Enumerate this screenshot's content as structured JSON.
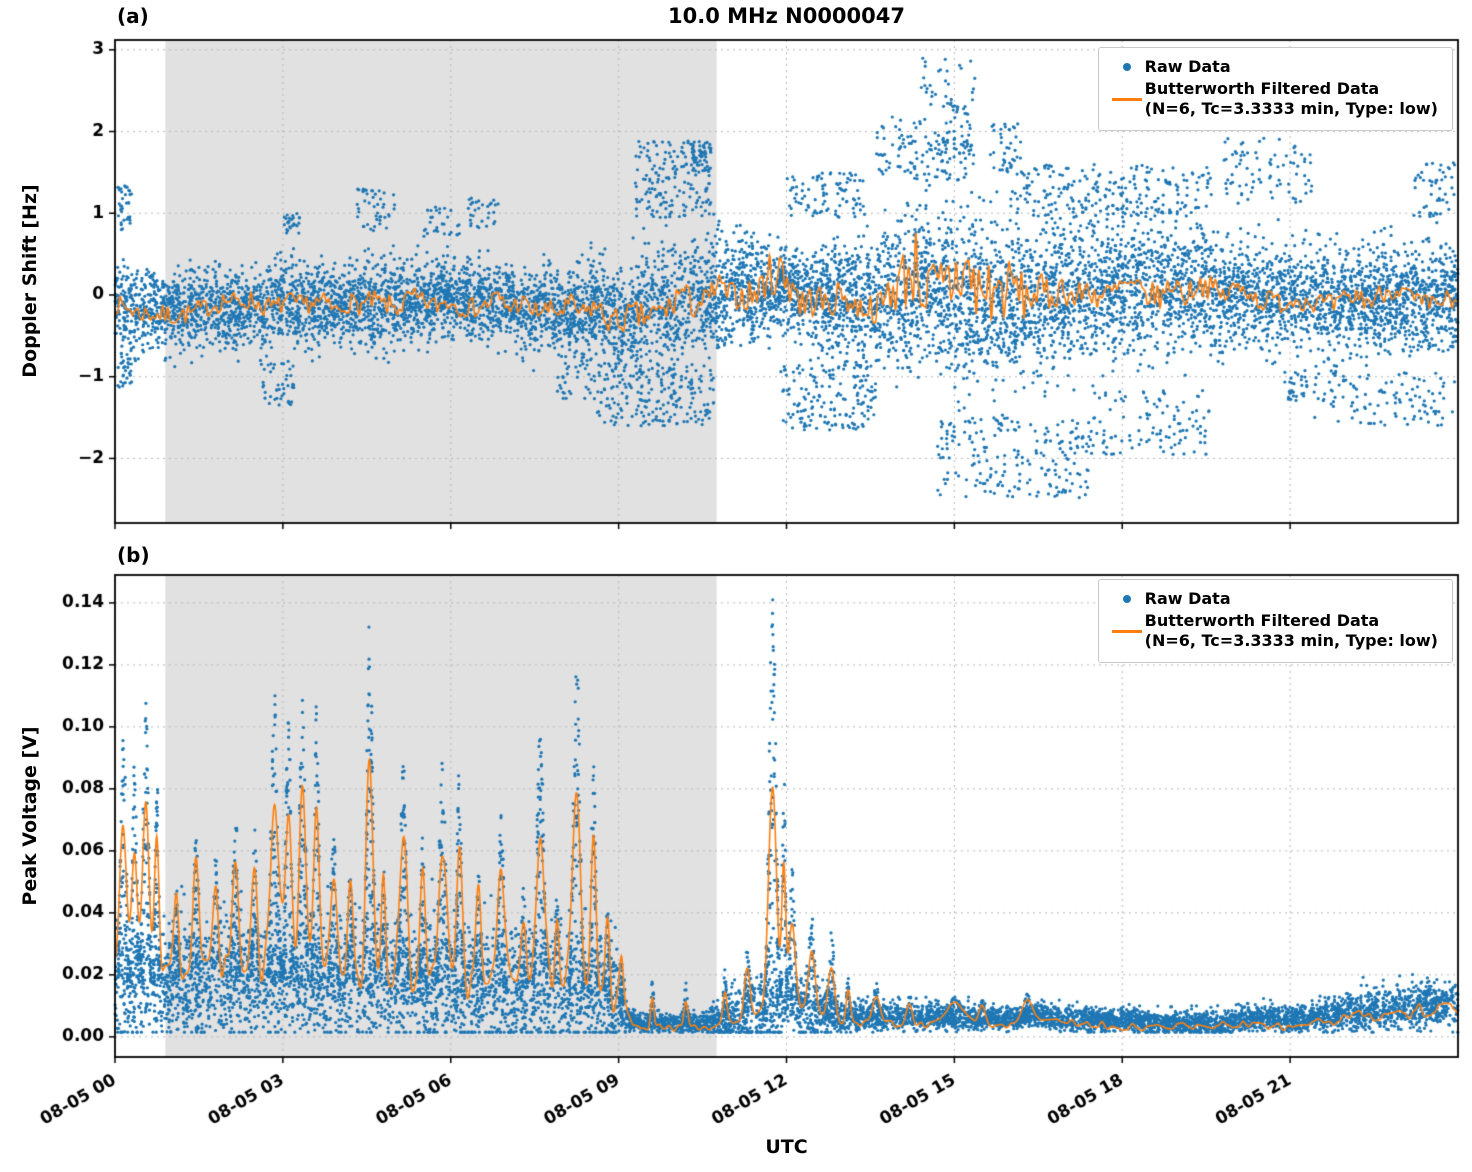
{
  "figure": {
    "title": "10.0 MHz N0000047",
    "xlabel": "UTC",
    "panel_a": "(a)",
    "panel_b": "(b)"
  },
  "legend": {
    "raw": "Raw Data",
    "filtered": "Butterworth Filtered Data",
    "filtered_params": "(N=6, Tc=3.3333 min, Type: low)"
  },
  "colors": {
    "raw_points": "#1f77b4",
    "filtered_line": "#ff7f0e",
    "shaded_region": "#e1e1e1",
    "grid": "#b8b8b8",
    "axis": "#000000",
    "background": "#ffffff"
  },
  "chart_data": [
    {
      "panel": "a",
      "type": "scatter",
      "title": "10.0 MHz N0000047",
      "ylabel": "Doppler Shift [Hz]",
      "xlabel": "UTC",
      "ylim": [
        -2.79,
        3.12
      ],
      "yticks": [
        {
          "v": 3,
          "label": "3"
        },
        {
          "v": 2,
          "label": "2"
        },
        {
          "v": 1,
          "label": "1"
        },
        {
          "v": 0,
          "label": "0"
        },
        {
          "v": -1,
          "label": "−1"
        },
        {
          "v": -2,
          "label": "−2"
        }
      ],
      "x_hours_range": [
        0,
        24
      ],
      "xticks_hours": [
        0,
        3,
        6,
        9,
        12,
        15,
        18,
        21
      ],
      "xtick_labels": [
        "08-05 00",
        "08-05 03",
        "08-05 06",
        "08-05 09",
        "08-05 12",
        "08-05 15",
        "08-05 18",
        "08-05 21"
      ],
      "shaded_hours": [
        0.9,
        10.75
      ],
      "raw_representation": "dense scatter synthesized from band statistics below",
      "raw_band": {
        "hours": [
          0,
          1,
          2,
          3,
          4,
          5,
          6,
          7,
          8,
          8.5,
          9,
          9.5,
          10,
          10.5,
          11,
          11.5,
          12,
          12.5,
          13,
          13.5,
          14,
          14.5,
          15,
          15.5,
          16,
          16.5,
          17,
          17.5,
          18,
          19,
          20,
          21,
          22,
          23,
          24
        ],
        "center": [
          -0.15,
          -0.2,
          -0.15,
          -0.1,
          -0.15,
          -0.1,
          -0.05,
          -0.15,
          -0.2,
          -0.15,
          -0.3,
          -0.2,
          -0.1,
          0.0,
          0.1,
          0.1,
          0.05,
          0.0,
          -0.05,
          -0.1,
          0.0,
          0.1,
          0.0,
          -0.1,
          -0.1,
          -0.05,
          0.0,
          0.05,
          0.1,
          0.1,
          0.0,
          -0.05,
          -0.1,
          0.0,
          -0.1
        ],
        "spread": [
          0.42,
          0.38,
          0.4,
          0.42,
          0.4,
          0.45,
          0.4,
          0.38,
          0.42,
          0.5,
          0.55,
          0.62,
          0.65,
          0.6,
          0.55,
          0.5,
          0.45,
          0.5,
          0.55,
          0.65,
          0.75,
          0.8,
          0.85,
          0.8,
          0.75,
          0.8,
          0.75,
          0.7,
          0.65,
          0.6,
          0.55,
          0.5,
          0.55,
          0.5,
          0.55
        ]
      },
      "outlier_clusters": [
        [
          0.05,
          0.3,
          0.8,
          1.35,
          35
        ],
        [
          0.05,
          0.3,
          -1.15,
          -0.7,
          30
        ],
        [
          2.55,
          3.2,
          -1.35,
          -0.8,
          45
        ],
        [
          3.0,
          3.3,
          0.7,
          1.0,
          25
        ],
        [
          4.3,
          5.05,
          0.75,
          1.3,
          45
        ],
        [
          5.5,
          6.2,
          0.7,
          1.1,
          30
        ],
        [
          6.3,
          6.9,
          0.8,
          1.2,
          30
        ],
        [
          7.9,
          8.6,
          -1.3,
          -0.75,
          35
        ],
        [
          8.6,
          10.7,
          -1.6,
          -0.85,
          200
        ],
        [
          9.3,
          10.65,
          0.95,
          1.9,
          170
        ],
        [
          10.3,
          10.65,
          1.5,
          1.88,
          40
        ],
        [
          11.9,
          13.6,
          -1.65,
          -0.85,
          160
        ],
        [
          12.0,
          13.4,
          0.95,
          1.5,
          90
        ],
        [
          13.6,
          14.5,
          1.4,
          2.2,
          60
        ],
        [
          14.4,
          15.4,
          1.7,
          2.9,
          70
        ],
        [
          14.5,
          15.35,
          1.4,
          2.0,
          60
        ],
        [
          14.7,
          17.4,
          -2.48,
          -1.5,
          200
        ],
        [
          15.6,
          16.2,
          1.5,
          2.1,
          40
        ],
        [
          16.0,
          19.6,
          0.95,
          1.6,
          220
        ],
        [
          17.4,
          19.6,
          -1.95,
          -1.15,
          110
        ],
        [
          19.8,
          21.4,
          1.1,
          1.92,
          80
        ],
        [
          20.9,
          21.3,
          -1.3,
          -0.9,
          30
        ],
        [
          21.4,
          23.95,
          -1.6,
          -0.95,
          110
        ],
        [
          23.2,
          23.95,
          0.95,
          1.62,
          50
        ]
      ],
      "filtered_envelope": {
        "center_scale": 0.85,
        "amp_hours": [
          0,
          8,
          9,
          10,
          11,
          11.5,
          12,
          12.4,
          13,
          13.6,
          14,
          14.5,
          15,
          15.5,
          16,
          16.5,
          17,
          18,
          19,
          20,
          21,
          22,
          23,
          24
        ],
        "amp": [
          0.16,
          0.17,
          0.22,
          0.25,
          0.2,
          0.3,
          0.45,
          0.3,
          0.2,
          0.25,
          0.5,
          0.7,
          0.8,
          0.7,
          0.45,
          0.3,
          0.25,
          0.22,
          0.2,
          0.18,
          0.16,
          0.18,
          0.16,
          0.18
        ],
        "clip": [
          -1.08,
          0.96
        ]
      }
    },
    {
      "panel": "b",
      "type": "scatter",
      "ylabel": "Peak Voltage [V]",
      "xlabel": "UTC",
      "ylim": [
        -0.0065,
        0.149
      ],
      "yticks": [
        {
          "v": 0.14,
          "label": "0.14"
        },
        {
          "v": 0.12,
          "label": "0.12"
        },
        {
          "v": 0.1,
          "label": "0.10"
        },
        {
          "v": 0.08,
          "label": "0.08"
        },
        {
          "v": 0.06,
          "label": "0.06"
        },
        {
          "v": 0.04,
          "label": "0.04"
        },
        {
          "v": 0.02,
          "label": "0.02"
        },
        {
          "v": 0.0,
          "label": "0.00"
        }
      ],
      "x_hours_range": [
        0,
        24
      ],
      "xticks_hours": [
        0,
        3,
        6,
        9,
        12,
        15,
        18,
        21
      ],
      "xtick_labels": [
        "08-05 00",
        "08-05 03",
        "08-05 06",
        "08-05 09",
        "08-05 12",
        "08-05 15",
        "08-05 18",
        "08-05 21"
      ],
      "shaded_hours": [
        0.9,
        10.75
      ],
      "raw_representation": "dense scatter synthesized from baseline band plus spike columns below",
      "raw_band": {
        "hours": [
          0,
          0.5,
          1,
          2,
          3,
          4,
          5,
          6,
          7,
          8,
          8.9,
          9.2,
          9.4,
          10.5,
          10.9,
          11.2,
          12,
          12.5,
          13,
          14,
          15,
          16,
          16.5,
          17,
          18,
          18.5,
          20,
          20.5,
          21,
          21.5,
          22,
          23,
          24
        ],
        "base": [
          0.016,
          0.015,
          0.016,
          0.018,
          0.017,
          0.015,
          0.016,
          0.015,
          0.013,
          0.015,
          0.011,
          0.005,
          0.004,
          0.004,
          0.005,
          0.007,
          0.011,
          0.008,
          0.006,
          0.006,
          0.006,
          0.005,
          0.007,
          0.005,
          0.005,
          0.004,
          0.004,
          0.006,
          0.005,
          0.006,
          0.007,
          0.009,
          0.01
        ],
        "spread": [
          0.012,
          0.012,
          0.012,
          0.012,
          0.012,
          0.012,
          0.012,
          0.012,
          0.012,
          0.012,
          0.012,
          0.002,
          0.002,
          0.002,
          0.004,
          0.007,
          0.007,
          0.007,
          0.0035,
          0.0028,
          0.0025,
          0.0025,
          0.0025,
          0.0025,
          0.0025,
          0.0025,
          0.0025,
          0.0025,
          0.0025,
          0.003,
          0.004,
          0.0045,
          0.005
        ]
      },
      "spikes": [
        [
          0.15,
          0.1,
          0.1
        ],
        [
          0.35,
          0.08,
          0.09
        ],
        [
          0.55,
          0.1,
          0.11
        ],
        [
          0.75,
          0.07,
          0.085
        ],
        [
          1.1,
          0.08,
          0.05
        ],
        [
          1.45,
          0.1,
          0.065
        ],
        [
          1.8,
          0.08,
          0.06
        ],
        [
          2.15,
          0.1,
          0.075
        ],
        [
          2.5,
          0.08,
          0.07
        ],
        [
          2.85,
          0.12,
          0.112
        ],
        [
          3.1,
          0.1,
          0.108
        ],
        [
          3.35,
          0.1,
          0.115
        ],
        [
          3.6,
          0.08,
          0.11
        ],
        [
          3.9,
          0.1,
          0.07
        ],
        [
          4.2,
          0.08,
          0.06
        ],
        [
          4.55,
          0.1,
          0.138
        ],
        [
          4.8,
          0.06,
          0.06
        ],
        [
          5.15,
          0.1,
          0.092
        ],
        [
          5.5,
          0.08,
          0.065
        ],
        [
          5.85,
          0.12,
          0.09
        ],
        [
          6.15,
          0.08,
          0.088
        ],
        [
          6.5,
          0.08,
          0.055
        ],
        [
          6.9,
          0.1,
          0.072
        ],
        [
          7.3,
          0.08,
          0.05
        ],
        [
          7.6,
          0.12,
          0.101
        ],
        [
          7.9,
          0.06,
          0.05
        ],
        [
          8.25,
          0.12,
          0.125
        ],
        [
          8.55,
          0.08,
          0.09
        ],
        [
          8.8,
          0.06,
          0.045
        ],
        [
          9.05,
          0.05,
          0.025
        ],
        [
          9.6,
          0.05,
          0.02
        ],
        [
          10.2,
          0.06,
          0.018
        ],
        [
          10.9,
          0.06,
          0.022
        ],
        [
          11.3,
          0.08,
          0.03
        ],
        [
          11.75,
          0.12,
          0.143
        ],
        [
          11.95,
          0.06,
          0.09
        ],
        [
          12.1,
          0.1,
          0.055
        ],
        [
          12.45,
          0.1,
          0.04
        ],
        [
          12.8,
          0.1,
          0.035
        ],
        [
          13.1,
          0.06,
          0.02
        ],
        [
          13.6,
          0.1,
          0.018
        ],
        [
          14.2,
          0.08,
          0.014
        ],
        [
          15.0,
          0.3,
          0.013
        ],
        [
          15.5,
          0.1,
          0.012
        ],
        [
          16.3,
          0.15,
          0.014
        ]
      ],
      "filtered_envelope": {
        "fbase_hours": [
          0,
          0.5,
          1,
          2,
          3,
          4,
          5,
          6,
          7,
          8,
          9,
          9.2,
          9.4,
          10.5,
          10.9,
          11.2,
          12,
          12.5,
          13,
          14,
          16,
          16.5,
          18,
          20.5,
          21,
          21.5,
          22,
          23,
          24
        ],
        "fbase": [
          0.02,
          0.018,
          0.02,
          0.022,
          0.02,
          0.018,
          0.02,
          0.018,
          0.016,
          0.018,
          0.012,
          0.006,
          0.003,
          0.003,
          0.004,
          0.006,
          0.01,
          0.007,
          0.005,
          0.004,
          0.004,
          0.006,
          0.003,
          0.004,
          0.003,
          0.005,
          0.006,
          0.008,
          0.009
        ],
        "spike_gain": 0.5,
        "wiggle_amp_hours": [
          0,
          8.9,
          9.3,
          13,
          21.5,
          22,
          24
        ],
        "wiggle_amp": [
          0.006,
          0.006,
          0.0012,
          0.0012,
          0.0012,
          0.002,
          0.0025
        ],
        "clip": [
          0.0015,
          0.145
        ]
      }
    }
  ]
}
